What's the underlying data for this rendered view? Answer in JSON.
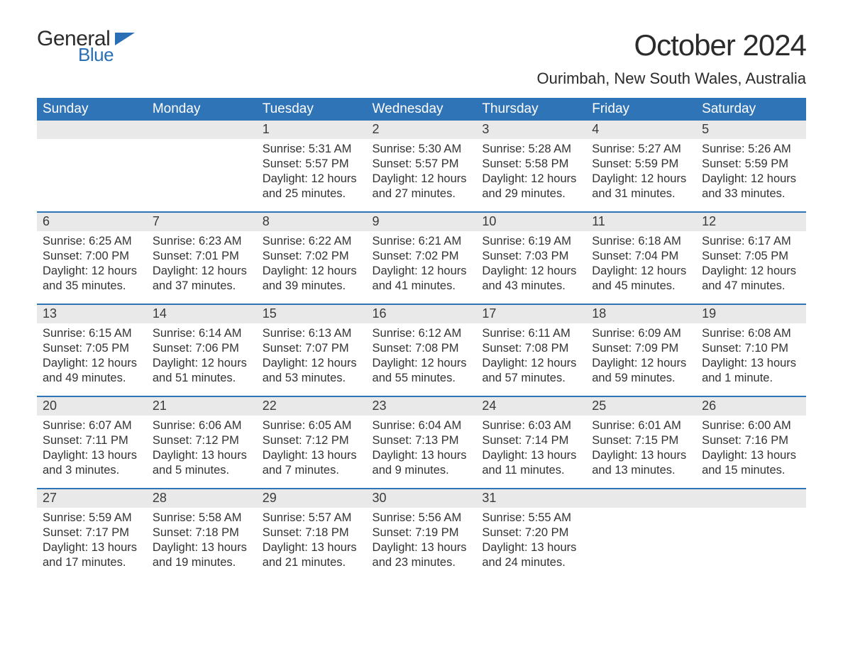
{
  "brand": {
    "part1": "General",
    "part2": "Blue",
    "flag_color": "#2a6fb5"
  },
  "title": "October 2024",
  "subtitle": "Ourimbah, New South Wales, Australia",
  "colors": {
    "header_bg": "#3074b8",
    "header_text": "#ffffff",
    "daynum_bg": "#e9e9e9",
    "row_border": "#3074b8",
    "body_text": "#333333",
    "background": "#ffffff"
  },
  "weekdays": [
    "Sunday",
    "Monday",
    "Tuesday",
    "Wednesday",
    "Thursday",
    "Friday",
    "Saturday"
  ],
  "labels": {
    "sunrise": "Sunrise:",
    "sunset": "Sunset:",
    "daylight": "Daylight:"
  },
  "weeks": [
    [
      null,
      null,
      {
        "n": "1",
        "sunrise": "5:31 AM",
        "sunset": "5:57 PM",
        "daylight": "12 hours and 25 minutes."
      },
      {
        "n": "2",
        "sunrise": "5:30 AM",
        "sunset": "5:57 PM",
        "daylight": "12 hours and 27 minutes."
      },
      {
        "n": "3",
        "sunrise": "5:28 AM",
        "sunset": "5:58 PM",
        "daylight": "12 hours and 29 minutes."
      },
      {
        "n": "4",
        "sunrise": "5:27 AM",
        "sunset": "5:59 PM",
        "daylight": "12 hours and 31 minutes."
      },
      {
        "n": "5",
        "sunrise": "5:26 AM",
        "sunset": "5:59 PM",
        "daylight": "12 hours and 33 minutes."
      }
    ],
    [
      {
        "n": "6",
        "sunrise": "6:25 AM",
        "sunset": "7:00 PM",
        "daylight": "12 hours and 35 minutes."
      },
      {
        "n": "7",
        "sunrise": "6:23 AM",
        "sunset": "7:01 PM",
        "daylight": "12 hours and 37 minutes."
      },
      {
        "n": "8",
        "sunrise": "6:22 AM",
        "sunset": "7:02 PM",
        "daylight": "12 hours and 39 minutes."
      },
      {
        "n": "9",
        "sunrise": "6:21 AM",
        "sunset": "7:02 PM",
        "daylight": "12 hours and 41 minutes."
      },
      {
        "n": "10",
        "sunrise": "6:19 AM",
        "sunset": "7:03 PM",
        "daylight": "12 hours and 43 minutes."
      },
      {
        "n": "11",
        "sunrise": "6:18 AM",
        "sunset": "7:04 PM",
        "daylight": "12 hours and 45 minutes."
      },
      {
        "n": "12",
        "sunrise": "6:17 AM",
        "sunset": "7:05 PM",
        "daylight": "12 hours and 47 minutes."
      }
    ],
    [
      {
        "n": "13",
        "sunrise": "6:15 AM",
        "sunset": "7:05 PM",
        "daylight": "12 hours and 49 minutes."
      },
      {
        "n": "14",
        "sunrise": "6:14 AM",
        "sunset": "7:06 PM",
        "daylight": "12 hours and 51 minutes."
      },
      {
        "n": "15",
        "sunrise": "6:13 AM",
        "sunset": "7:07 PM",
        "daylight": "12 hours and 53 minutes."
      },
      {
        "n": "16",
        "sunrise": "6:12 AM",
        "sunset": "7:08 PM",
        "daylight": "12 hours and 55 minutes."
      },
      {
        "n": "17",
        "sunrise": "6:11 AM",
        "sunset": "7:08 PM",
        "daylight": "12 hours and 57 minutes."
      },
      {
        "n": "18",
        "sunrise": "6:09 AM",
        "sunset": "7:09 PM",
        "daylight": "12 hours and 59 minutes."
      },
      {
        "n": "19",
        "sunrise": "6:08 AM",
        "sunset": "7:10 PM",
        "daylight": "13 hours and 1 minute."
      }
    ],
    [
      {
        "n": "20",
        "sunrise": "6:07 AM",
        "sunset": "7:11 PM",
        "daylight": "13 hours and 3 minutes."
      },
      {
        "n": "21",
        "sunrise": "6:06 AM",
        "sunset": "7:12 PM",
        "daylight": "13 hours and 5 minutes."
      },
      {
        "n": "22",
        "sunrise": "6:05 AM",
        "sunset": "7:12 PM",
        "daylight": "13 hours and 7 minutes."
      },
      {
        "n": "23",
        "sunrise": "6:04 AM",
        "sunset": "7:13 PM",
        "daylight": "13 hours and 9 minutes."
      },
      {
        "n": "24",
        "sunrise": "6:03 AM",
        "sunset": "7:14 PM",
        "daylight": "13 hours and 11 minutes."
      },
      {
        "n": "25",
        "sunrise": "6:01 AM",
        "sunset": "7:15 PM",
        "daylight": "13 hours and 13 minutes."
      },
      {
        "n": "26",
        "sunrise": "6:00 AM",
        "sunset": "7:16 PM",
        "daylight": "13 hours and 15 minutes."
      }
    ],
    [
      {
        "n": "27",
        "sunrise": "5:59 AM",
        "sunset": "7:17 PM",
        "daylight": "13 hours and 17 minutes."
      },
      {
        "n": "28",
        "sunrise": "5:58 AM",
        "sunset": "7:18 PM",
        "daylight": "13 hours and 19 minutes."
      },
      {
        "n": "29",
        "sunrise": "5:57 AM",
        "sunset": "7:18 PM",
        "daylight": "13 hours and 21 minutes."
      },
      {
        "n": "30",
        "sunrise": "5:56 AM",
        "sunset": "7:19 PM",
        "daylight": "13 hours and 23 minutes."
      },
      {
        "n": "31",
        "sunrise": "5:55 AM",
        "sunset": "7:20 PM",
        "daylight": "13 hours and 24 minutes."
      },
      null,
      null
    ]
  ]
}
